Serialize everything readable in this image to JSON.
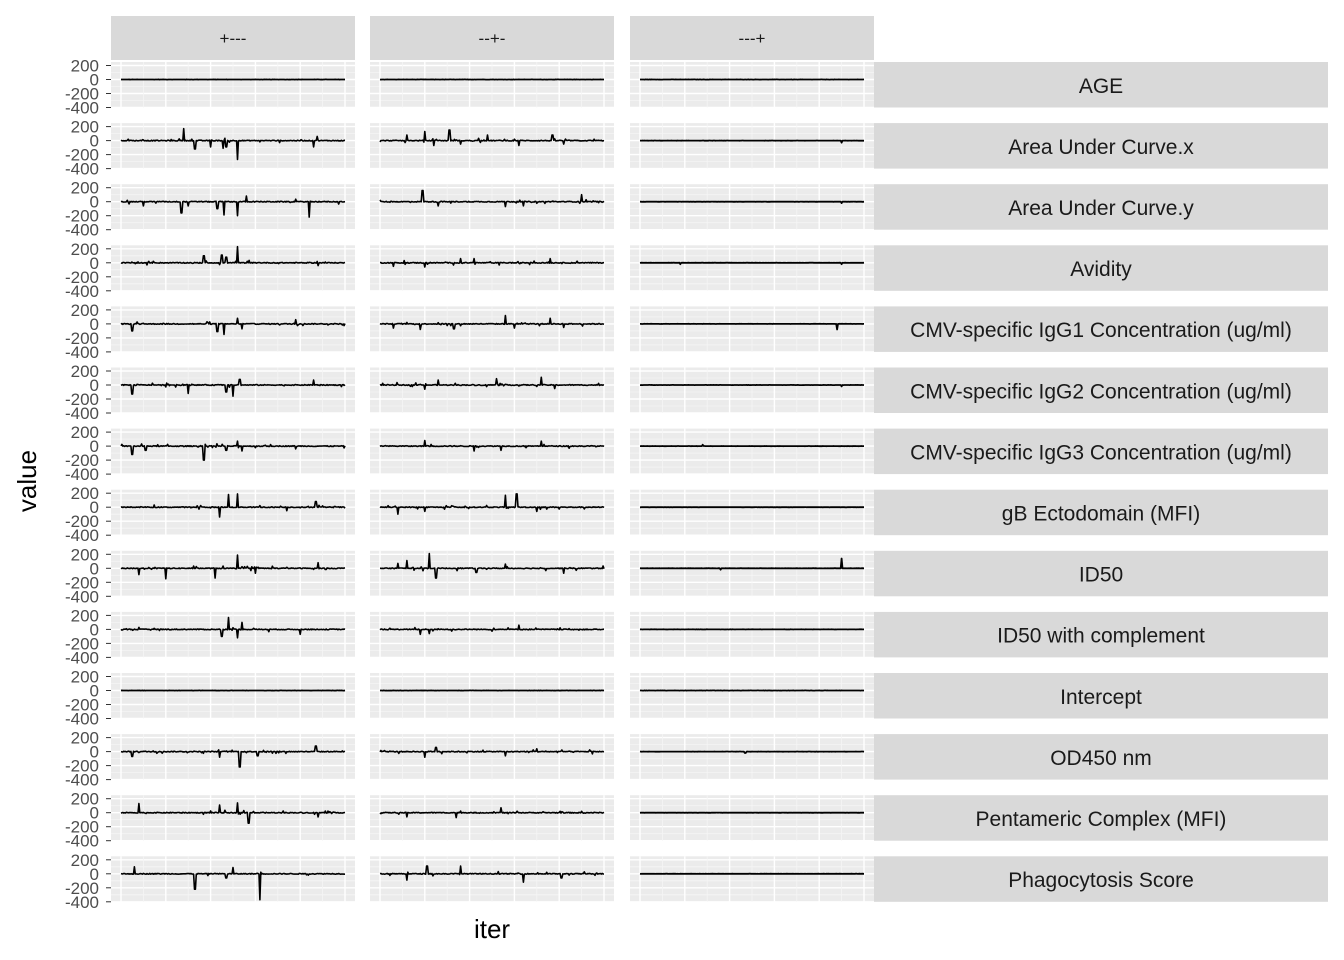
{
  "chart_data": {
    "type": "line",
    "facets": {
      "columns": [
        "+---",
        "--+-",
        "---+"
      ],
      "rows": [
        "AGE",
        "Area Under Curve.x",
        "Area Under Curve.y",
        "Avidity",
        "CMV-specific IgG1 Concentration (ug/ml)",
        "CMV-specific IgG2 Concentration (ug/ml)",
        "CMV-specific IgG3 Concentration (ug/ml)",
        "gB Ectodomain (MFI)",
        "ID50",
        "ID50 with complement",
        "Intercept",
        "OD450 nm",
        "Pentameric Complex (MFI)",
        "Phagocytosis Score"
      ]
    },
    "xlabel": "iter",
    "ylabel": "value",
    "y_ticks": [
      "200",
      "0",
      "-200",
      "-400"
    ],
    "y_tick_values": [
      200,
      0,
      -200,
      -400
    ],
    "ylim": [
      -400,
      250
    ],
    "xlim": [
      0,
      1000
    ],
    "line_color": "#000000",
    "panel_background": "#ebebeb",
    "strip_background": "#d9d9d9",
    "grid": true,
    "spikes": {
      "AGE": [
        [],
        [],
        []
      ],
      "Area Under Curve.x": [
        [
          [
            280,
            170
          ],
          [
            330,
            -120
          ],
          [
            400,
            -90
          ],
          [
            455,
            -110
          ],
          [
            470,
            -90
          ],
          [
            520,
            -270
          ],
          [
            860,
            -90
          ],
          [
            875,
            60
          ]
        ],
        [
          [
            120,
            80
          ],
          [
            200,
            130
          ],
          [
            240,
            -70
          ],
          [
            310,
            150
          ],
          [
            360,
            -50
          ],
          [
            480,
            80
          ],
          [
            620,
            -70
          ],
          [
            770,
            80
          ],
          [
            820,
            -50
          ]
        ],
        [
          [
            900,
            -30
          ]
        ]
      ],
      "Area Under Curve.y": [
        [
          [
            100,
            -60
          ],
          [
            270,
            -160
          ],
          [
            300,
            -60
          ],
          [
            430,
            -100
          ],
          [
            460,
            -190
          ],
          [
            520,
            -200
          ],
          [
            560,
            80
          ],
          [
            840,
            -220
          ]
        ],
        [
          [
            190,
            160
          ],
          [
            260,
            -60
          ],
          [
            560,
            -70
          ],
          [
            640,
            -60
          ],
          [
            900,
            100
          ]
        ],
        [
          [
            900,
            -20
          ]
        ]
      ],
      "Avidity": [
        [
          [
            370,
            100
          ],
          [
            450,
            110
          ],
          [
            470,
            80
          ],
          [
            520,
            230
          ],
          [
            880,
            -40
          ]
        ],
        [
          [
            60,
            -50
          ],
          [
            200,
            -60
          ],
          [
            360,
            60
          ],
          [
            420,
            60
          ],
          [
            760,
            60
          ]
        ],
        [
          [
            180,
            -20
          ],
          [
            900,
            -20
          ]
        ]
      ],
      "CMV-specific IgG1 Concentration (ug/ml)": [
        [
          [
            50,
            -100
          ],
          [
            430,
            -110
          ],
          [
            460,
            -150
          ],
          [
            520,
            80
          ],
          [
            540,
            -70
          ],
          [
            780,
            60
          ]
        ],
        [
          [
            60,
            -60
          ],
          [
            180,
            -80
          ],
          [
            330,
            -70
          ],
          [
            560,
            120
          ],
          [
            600,
            -60
          ],
          [
            760,
            80
          ],
          [
            820,
            -50
          ]
        ],
        [
          [
            880,
            -80
          ]
        ]
      ],
      "CMV-specific IgG2 Concentration (ug/ml)": [
        [
          [
            50,
            -130
          ],
          [
            300,
            -120
          ],
          [
            470,
            -100
          ],
          [
            500,
            -160
          ],
          [
            530,
            80
          ],
          [
            860,
            70
          ]
        ],
        [
          [
            200,
            -60
          ],
          [
            260,
            70
          ],
          [
            520,
            90
          ],
          [
            720,
            110
          ],
          [
            780,
            -50
          ]
        ],
        [
          [
            900,
            -20
          ]
        ]
      ],
      "CMV-specific IgG3 Concentration (ug/ml)": [
        [
          [
            50,
            -120
          ],
          [
            110,
            -60
          ],
          [
            370,
            -200
          ],
          [
            470,
            -60
          ],
          [
            520,
            70
          ],
          [
            540,
            -70
          ],
          [
            780,
            -40
          ]
        ],
        [
          [
            200,
            80
          ],
          [
            420,
            -70
          ],
          [
            540,
            -60
          ],
          [
            720,
            70
          ]
        ],
        [
          [
            280,
            20
          ]
        ]
      ],
      "gB Ectodomain (MFI)": [
        [
          [
            440,
            -140
          ],
          [
            480,
            180
          ],
          [
            520,
            190
          ],
          [
            740,
            -50
          ],
          [
            870,
            80
          ]
        ],
        [
          [
            80,
            -100
          ],
          [
            200,
            -60
          ],
          [
            560,
            170
          ],
          [
            610,
            190
          ],
          [
            700,
            -60
          ]
        ],
        []
      ],
      "ID50": [
        [
          [
            80,
            -90
          ],
          [
            200,
            -150
          ],
          [
            420,
            -140
          ],
          [
            520,
            190
          ],
          [
            600,
            -70
          ],
          [
            880,
            80
          ]
        ],
        [
          [
            80,
            70
          ],
          [
            120,
            110
          ],
          [
            220,
            210
          ],
          [
            250,
            -140
          ],
          [
            430,
            -60
          ],
          [
            560,
            60
          ],
          [
            820,
            -70
          ]
        ],
        [
          [
            900,
            140
          ],
          [
            360,
            -20
          ]
        ]
      ],
      "ID50 with complement": [
        [
          [
            450,
            -100
          ],
          [
            480,
            170
          ],
          [
            520,
            -120
          ],
          [
            540,
            100
          ],
          [
            800,
            -70
          ]
        ],
        [
          [
            180,
            -70
          ],
          [
            220,
            -60
          ],
          [
            620,
            60
          ]
        ],
        []
      ],
      "Intercept": [
        [],
        [],
        []
      ],
      "OD450 nm": [
        [
          [
            50,
            -70
          ],
          [
            440,
            -80
          ],
          [
            530,
            -220
          ],
          [
            610,
            -60
          ],
          [
            870,
            80
          ]
        ],
        [
          [
            200,
            -80
          ],
          [
            250,
            60
          ],
          [
            560,
            -60
          ],
          [
            700,
            40
          ]
        ],
        [
          [
            470,
            -20
          ]
        ]
      ],
      "Pentameric Complex (MFI)": [
        [
          [
            80,
            130
          ],
          [
            440,
            110
          ],
          [
            520,
            140
          ],
          [
            570,
            -150
          ],
          [
            880,
            -60
          ]
        ],
        [
          [
            120,
            -60
          ],
          [
            340,
            -70
          ],
          [
            540,
            70
          ]
        ],
        []
      ],
      "Phagocytosis Score": [
        [
          [
            60,
            100
          ],
          [
            330,
            -220
          ],
          [
            470,
            -60
          ],
          [
            500,
            90
          ],
          [
            620,
            -370
          ]
        ],
        [
          [
            120,
            -90
          ],
          [
            210,
            110
          ],
          [
            360,
            110
          ],
          [
            640,
            -120
          ],
          [
            810,
            -60
          ]
        ],
        []
      ]
    }
  }
}
